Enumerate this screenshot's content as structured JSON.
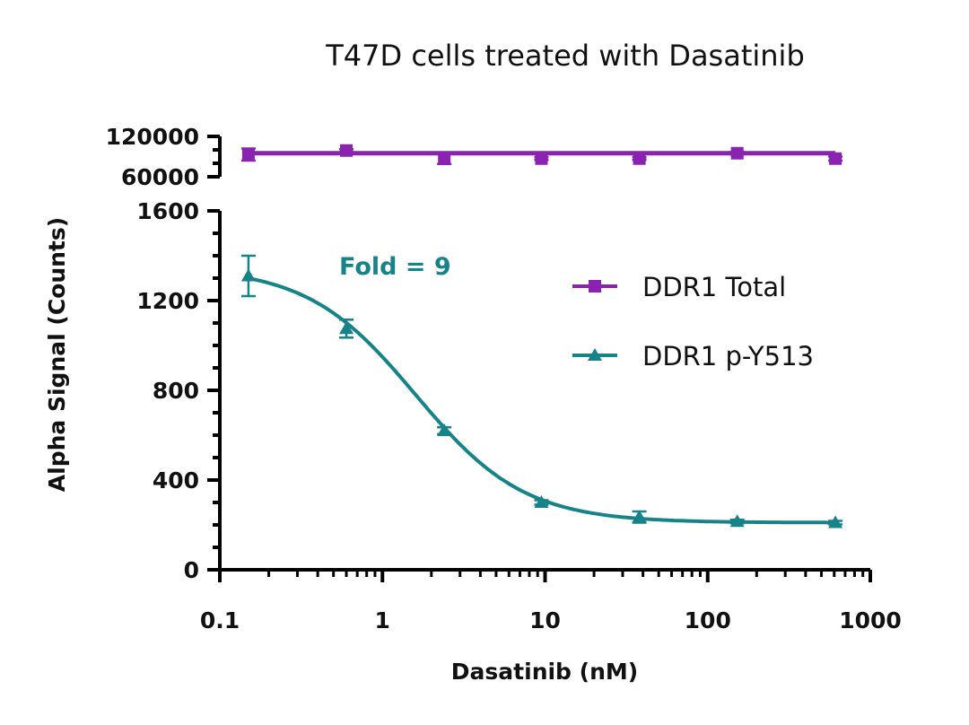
{
  "chart_data": {
    "type": "line",
    "title": "T47D cells treated with Dasatinib",
    "xlabel": "Dasatinib (nM)",
    "ylabel": "Alpha Signal (Counts)",
    "xscale": "log",
    "xlim": [
      0.1,
      1000
    ],
    "x_ticks": [
      "0.1",
      "1",
      "10",
      "100",
      "1000"
    ],
    "x_tick_values": [
      0.1,
      1,
      10,
      100,
      1000
    ],
    "ylim_lower": [
      0,
      1600
    ],
    "y_ticks_lower": [
      "0",
      "400",
      "800",
      "1200",
      "1600"
    ],
    "y_tick_values_lower": [
      0,
      400,
      800,
      1200,
      1600
    ],
    "ylim_upper": [
      60000,
      120000
    ],
    "y_ticks_upper": [
      "60000",
      "120000"
    ],
    "y_tick_values_upper": [
      60000,
      120000
    ],
    "annotation": "Fold = 9",
    "legend_position": "right",
    "x": [
      0.15,
      0.6,
      2.4,
      9.5,
      38,
      152,
      610
    ],
    "series": [
      {
        "name": "DDR1 Total",
        "color": "#8a24b0",
        "marker": "square",
        "panel": "upper",
        "values": [
          93000,
          99000,
          87000,
          87000,
          87000,
          95000,
          87000
        ],
        "errors": [
          9000,
          2000,
          8000,
          2000,
          2000,
          2000,
          3000
        ],
        "fit_level": 95000
      },
      {
        "name": "DDR1 p-Y513",
        "color": "#158387",
        "marker": "triangle",
        "panel": "lower",
        "values": [
          1310,
          1075,
          620,
          300,
          235,
          215,
          210
        ],
        "errors": [
          90,
          40,
          15,
          10,
          25,
          8,
          8
        ],
        "fit": {
          "bottom": 210,
          "top": 1350,
          "ic50": 1.6,
          "hill": 1.3
        }
      }
    ]
  }
}
